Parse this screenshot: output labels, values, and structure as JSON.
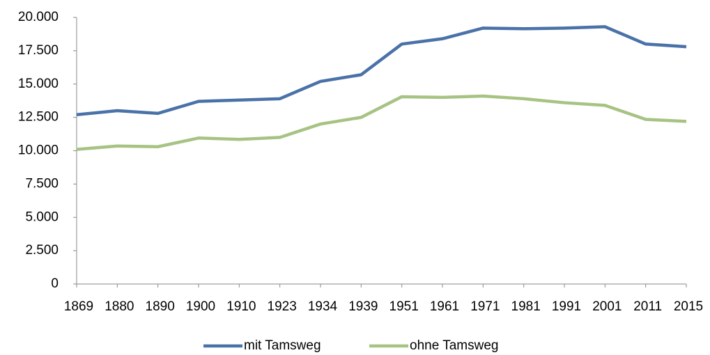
{
  "chart_data": {
    "type": "line",
    "categories": [
      "1869",
      "1880",
      "1890",
      "1900",
      "1910",
      "1923",
      "1934",
      "1939",
      "1951",
      "1961",
      "1971",
      "1981",
      "1991",
      "2001",
      "2011",
      "2015"
    ],
    "series": [
      {
        "name": "mit Tamsweg",
        "color": "#4a72a8",
        "values": [
          12700,
          13000,
          12800,
          13700,
          13800,
          13900,
          15200,
          15700,
          18000,
          18400,
          19200,
          19150,
          19200,
          19300,
          18000,
          17800
        ]
      },
      {
        "name": "ohne Tamsweg",
        "color": "#a7c384",
        "values": [
          10100,
          10350,
          10300,
          10950,
          10850,
          11000,
          12000,
          12500,
          14050,
          14000,
          14100,
          13900,
          13600,
          13400,
          12350,
          12200
        ]
      }
    ],
    "ylim": [
      0,
      20000
    ],
    "yticks": [
      0,
      {
        "value": 2500,
        "label": "2.500"
      },
      {
        "value": 5000,
        "label": "5.000"
      },
      {
        "value": 7500,
        "label": "7.500"
      },
      {
        "value": 10000,
        "label": "10.000"
      },
      {
        "value": 12500,
        "label": "12.500"
      },
      {
        "value": 15000,
        "label": "15.000"
      },
      {
        "value": 17500,
        "label": "17.500"
      },
      {
        "value": 20000,
        "label": "20.000"
      }
    ],
    "grid": false,
    "legend": "bottom"
  }
}
